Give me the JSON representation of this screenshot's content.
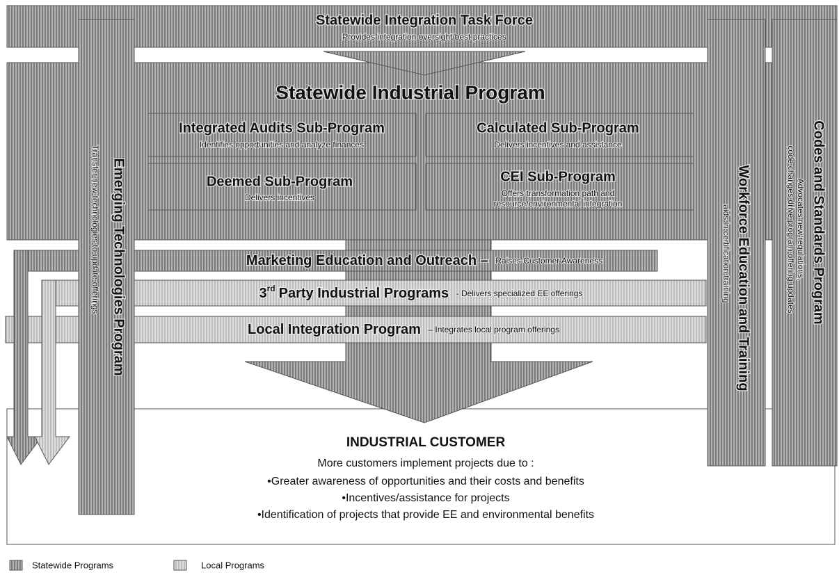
{
  "task_force": {
    "title": "Statewide Integration Task Force",
    "subtitle": "Provides integration oversight/best practices"
  },
  "industrial_program": {
    "title": "Statewide Industrial Program",
    "sub_programs": [
      {
        "title": "Integrated Audits Sub-Program",
        "desc": [
          "Identifies opportunities and analyze finances"
        ]
      },
      {
        "title": "Calculated Sub-Program",
        "desc": [
          "Delivers incentives and assistance"
        ]
      },
      {
        "title": "Deemed Sub-Program",
        "desc": [
          "Delivers incentives"
        ]
      },
      {
        "title": "CEI Sub-Program",
        "desc": [
          "Offers transformation path and",
          "resource/environmental integration"
        ]
      }
    ]
  },
  "marketing": {
    "title": "Marketing Education and Outreach –",
    "desc": "Raises Customer Awareness"
  },
  "third_party": {
    "number": "3",
    "superscript": "rd",
    "title": "Party Industrial Programs",
    "desc": "- Delivers specialized EE offerings"
  },
  "local": {
    "title": "Local Integration Program",
    "desc": "– Integrates local program offerings"
  },
  "emerging": {
    "title": "Emerging Technologies Program",
    "desc": [
      "Transfer new technologies to update offerings"
    ]
  },
  "workforce": {
    "title": "Workforce Education and Training",
    "desc": [
      "aids in certification training"
    ]
  },
  "codes": {
    "title": "Codes and Standards Program",
    "desc": [
      "Advocates new regulations,",
      "code changes drive program offering updates"
    ]
  },
  "customer": {
    "title": "INDUSTRIAL CUSTOMER",
    "intro": "More customers implement projects due to :",
    "bullets": [
      "•Greater awareness of opportunities and their costs and benefits",
      "•Incentives/assistance for projects",
      "•Identification of projects that provide EE and environmental benefits"
    ]
  },
  "legend": [
    "Statewide Programs",
    "Local Programs"
  ]
}
